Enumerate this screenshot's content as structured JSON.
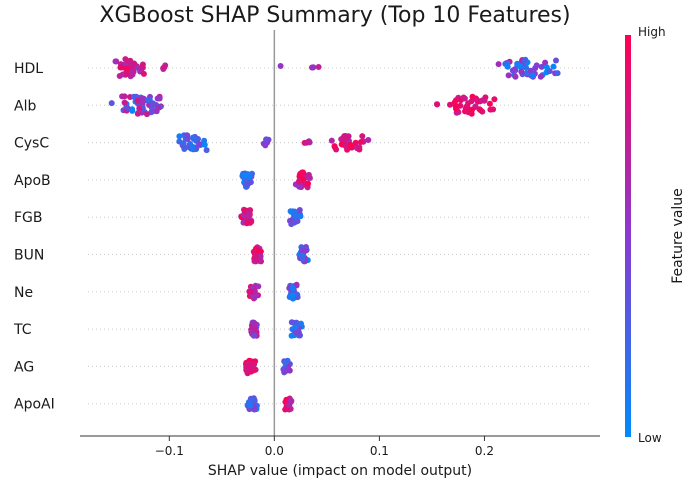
{
  "chart_data": {
    "type": "scatter",
    "subtype": "shap-beeswarm",
    "title": "XGBoost SHAP Summary (Top 10 Features)",
    "xlabel": "SHAP value (impact on model output)",
    "ylabel": "",
    "xlim": [
      -0.185,
      0.31
    ],
    "xticks": [
      -0.1,
      0.0,
      0.1,
      0.2
    ],
    "xtick_labels": [
      "−0.1",
      "0.0",
      "0.1",
      "0.2"
    ],
    "zero_line": 0.0,
    "colorbar": {
      "label": "Feature value",
      "high_label": "High",
      "low_label": "Low",
      "low_color": "#008bfb",
      "high_color": "#ff0052"
    },
    "features": [
      {
        "name": "HDL",
        "groups": [
          {
            "center": -0.137,
            "spread": 0.013,
            "n": 46,
            "color_low": 0.55,
            "color_high": 0.95
          },
          {
            "center": -0.105,
            "spread": 0.003,
            "n": 4,
            "color_low": 0.6,
            "color_high": 0.9
          },
          {
            "center": 0.037,
            "spread": 0.007,
            "n": 4,
            "color_low": 0.4,
            "color_high": 0.75
          },
          {
            "center": 0.005,
            "spread": 0.002,
            "n": 1,
            "color_low": 0.5,
            "color_high": 0.6
          },
          {
            "center": 0.24,
            "spread": 0.024,
            "n": 48,
            "color_low": 0.0,
            "color_high": 0.7
          }
        ]
      },
      {
        "name": "Alb",
        "groups": [
          {
            "center": -0.13,
            "spread": 0.02,
            "n": 54,
            "color_low": 0.0,
            "color_high": 0.85
          },
          {
            "center": 0.19,
            "spread": 0.017,
            "n": 42,
            "color_low": 0.75,
            "color_high": 1.0
          },
          {
            "center": 0.155,
            "spread": 0.002,
            "n": 2,
            "color_low": 0.85,
            "color_high": 1.0
          }
        ]
      },
      {
        "name": "CysC",
        "groups": [
          {
            "center": -0.078,
            "spread": 0.011,
            "n": 34,
            "color_low": 0.0,
            "color_high": 0.45
          },
          {
            "center": -0.008,
            "spread": 0.003,
            "n": 8,
            "color_low": 0.3,
            "color_high": 0.6
          },
          {
            "center": 0.03,
            "spread": 0.006,
            "n": 4,
            "color_low": 0.6,
            "color_high": 0.9
          },
          {
            "center": 0.072,
            "spread": 0.016,
            "n": 32,
            "color_low": 0.65,
            "color_high": 1.0
          }
        ]
      },
      {
        "name": "ApoB",
        "groups": [
          {
            "center": -0.027,
            "spread": 0.005,
            "n": 30,
            "color_low": 0.0,
            "color_high": 0.4
          },
          {
            "center": 0.027,
            "spread": 0.005,
            "n": 32,
            "color_low": 0.5,
            "color_high": 1.0
          }
        ]
      },
      {
        "name": "FGB",
        "groups": [
          {
            "center": -0.027,
            "spread": 0.005,
            "n": 30,
            "color_low": 0.55,
            "color_high": 1.0
          },
          {
            "center": 0.02,
            "spread": 0.004,
            "n": 30,
            "color_low": 0.0,
            "color_high": 0.5
          }
        ]
      },
      {
        "name": "BUN",
        "groups": [
          {
            "center": -0.016,
            "spread": 0.003,
            "n": 30,
            "color_low": 0.6,
            "color_high": 1.0
          },
          {
            "center": 0.027,
            "spread": 0.004,
            "n": 32,
            "color_low": 0.0,
            "color_high": 0.6
          }
        ]
      },
      {
        "name": "Ne",
        "groups": [
          {
            "center": -0.02,
            "spread": 0.004,
            "n": 26,
            "color_low": 0.55,
            "color_high": 1.0
          },
          {
            "center": 0.018,
            "spread": 0.004,
            "n": 30,
            "color_low": 0.0,
            "color_high": 0.6
          }
        ]
      },
      {
        "name": "TC",
        "groups": [
          {
            "center": -0.019,
            "spread": 0.003,
            "n": 26,
            "color_low": 0.35,
            "color_high": 0.8
          },
          {
            "center": 0.021,
            "spread": 0.004,
            "n": 28,
            "color_low": 0.0,
            "color_high": 0.5
          }
        ]
      },
      {
        "name": "AG",
        "groups": [
          {
            "center": -0.023,
            "spread": 0.004,
            "n": 28,
            "color_low": 0.65,
            "color_high": 1.0
          },
          {
            "center": 0.012,
            "spread": 0.003,
            "n": 24,
            "color_low": 0.0,
            "color_high": 0.6
          }
        ]
      },
      {
        "name": "ApoAI",
        "groups": [
          {
            "center": -0.021,
            "spread": 0.004,
            "n": 26,
            "color_low": 0.0,
            "color_high": 0.5
          },
          {
            "center": 0.013,
            "spread": 0.003,
            "n": 24,
            "color_low": 0.6,
            "color_high": 1.0
          }
        ]
      }
    ]
  }
}
